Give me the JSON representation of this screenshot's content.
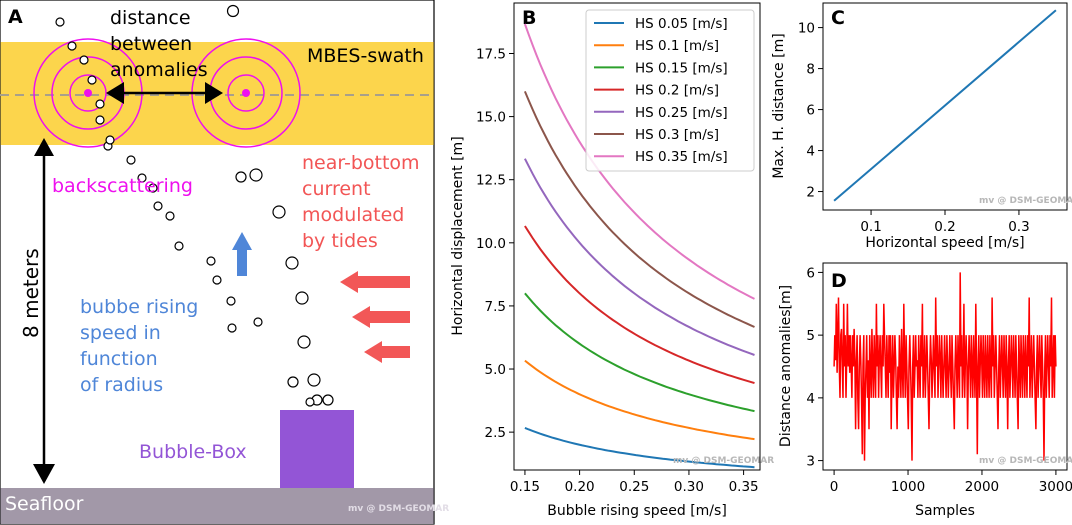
{
  "colors": {
    "swath": "#fcd54c",
    "seafloor": "#a298a8",
    "magenta": "#ee10ee",
    "blue_text": "#4f86d8",
    "red_text": "#f25555",
    "red_arrow": "#f25757",
    "purple_box": "#9355d6",
    "watermark": "#b7b7b7"
  },
  "panel_a": {
    "letter": "A",
    "distance_label": [
      "distance",
      "between",
      "anomalies"
    ],
    "swath_label": "MBES-swath",
    "backscatter_label": "backscattering",
    "current_label": [
      "near-bottom",
      "current",
      "modulated",
      "by tides"
    ],
    "rising_label": [
      "bubbe rising",
      "speed in",
      "function",
      "of radius"
    ],
    "depth_label": "8 meters",
    "box_label": "Bubble-Box",
    "seafloor_label": "Seafloor",
    "watermark": "mv @ DSM-GEOMAR"
  },
  "panel_b": {
    "letter": "B",
    "watermark": "mv @ DSM-GEOMAR"
  },
  "panel_c": {
    "letter": "C",
    "watermark": "mv @ DSM-GEOMAR"
  },
  "panel_d": {
    "letter": "D",
    "watermark": "mv @ DSM-GEOMAR"
  },
  "chart_data": [
    {
      "id": "B",
      "type": "line",
      "title": "",
      "xlabel": "Bubble rising speed [m/s]",
      "ylabel": "Horizontal displacement [m]",
      "xlim": [
        0.14,
        0.365
      ],
      "ylim": [
        1.0,
        19.5
      ],
      "xticks": [
        0.15,
        0.2,
        0.25,
        0.3,
        0.35
      ],
      "xtick_labels": [
        "0.15",
        "0.20",
        "0.25",
        "0.30",
        "0.35"
      ],
      "yticks": [
        2.5,
        5.0,
        7.5,
        10.0,
        12.5,
        15.0,
        17.5
      ],
      "ytick_labels": [
        "2.5",
        "5.0",
        "7.5",
        "10.0",
        "12.5",
        "15.0",
        "17.5"
      ],
      "x_range": [
        0.15,
        0.36
      ],
      "legend_position": "top-right",
      "model": "displacement = 8 * HS / rising_speed",
      "depth_m": 8,
      "series": [
        {
          "name": "HS 0.05 [m/s]",
          "hs": 0.05,
          "color": "#1f77b4",
          "y_start": 2.67,
          "y_end": 1.11
        },
        {
          "name": "HS 0.1 [m/s]",
          "hs": 0.1,
          "color": "#ff7f0e",
          "y_start": 5.33,
          "y_end": 2.22
        },
        {
          "name": "HS 0.15 [m/s]",
          "hs": 0.15,
          "color": "#2ca02c",
          "y_start": 8.0,
          "y_end": 3.33
        },
        {
          "name": "HS 0.2 [m/s]",
          "hs": 0.2,
          "color": "#d62728",
          "y_start": 10.67,
          "y_end": 4.44
        },
        {
          "name": "HS 0.25 [m/s]",
          "hs": 0.25,
          "color": "#9467bd",
          "y_start": 13.33,
          "y_end": 5.56
        },
        {
          "name": "HS 0.3 [m/s]",
          "hs": 0.3,
          "color": "#8c564b",
          "y_start": 16.0,
          "y_end": 6.67
        },
        {
          "name": "HS 0.35 [m/s]",
          "hs": 0.35,
          "color": "#e377c2",
          "y_start": 18.67,
          "y_end": 7.78
        }
      ]
    },
    {
      "id": "C",
      "type": "line",
      "title": "",
      "xlabel": "Horizontal speed [m/s]",
      "ylabel": "Max. H. distance [m]",
      "xlim": [
        0.035,
        0.365
      ],
      "ylim": [
        1.1,
        11.2
      ],
      "xticks": [
        0.1,
        0.2,
        0.3
      ],
      "xtick_labels": [
        "0.1",
        "0.2",
        "0.3"
      ],
      "yticks": [
        2,
        4,
        6,
        8,
        10
      ],
      "ytick_labels": [
        "2",
        "4",
        "6",
        "8",
        "10"
      ],
      "color": "#1f77b4",
      "x": [
        0.05,
        0.35
      ],
      "y": [
        1.55,
        10.85
      ]
    },
    {
      "id": "D",
      "type": "line",
      "title": "",
      "xlabel": "Samples",
      "ylabel": "Distance anomalies[m]",
      "xlim": [
        -150,
        3150
      ],
      "ylim": [
        2.85,
        6.15
      ],
      "xticks": [
        0,
        1000,
        2000,
        3000
      ],
      "xtick_labels": [
        "0",
        "1000",
        "2000",
        "3000"
      ],
      "yticks": [
        3,
        4,
        5,
        6
      ],
      "ytick_labels": [
        "3",
        "4",
        "5",
        "6"
      ],
      "color": "#ff0000",
      "n_samples": 3000,
      "levels": [
        3.0,
        3.1,
        3.5,
        4.0,
        4.4,
        4.5,
        4.6,
        5.0,
        5.1,
        5.5,
        5.6,
        6.0
      ],
      "y": [
        4.5,
        5.0,
        4.6,
        5.5,
        4.4,
        5.0,
        5.6,
        4.5,
        4.0,
        5.0,
        5.1,
        4.5,
        4.0,
        5.5,
        4.5,
        5.0,
        4.0,
        4.6,
        5.5,
        4.5,
        5.0,
        4.4,
        5.0,
        4.5,
        4.0,
        5.0,
        4.5,
        5.1,
        4.6,
        3.5,
        4.5,
        5.0,
        4.0,
        3.5,
        4.5,
        5.0,
        4.6,
        4.0,
        3.1,
        4.5,
        5.0,
        3.0,
        4.0,
        4.5,
        5.0,
        4.0,
        4.6,
        3.5,
        5.0,
        4.5,
        4.0,
        5.1,
        4.5,
        4.0,
        5.0,
        4.5,
        4.0,
        5.5,
        4.5,
        5.0,
        4.0,
        4.6,
        5.0,
        4.5,
        4.0,
        5.0,
        4.5,
        5.5,
        5.0,
        4.5,
        4.0,
        5.0,
        4.5,
        4.0,
        5.0,
        4.4,
        5.0,
        3.5,
        4.5,
        5.0,
        4.0,
        4.5,
        5.0,
        4.6,
        4.0,
        3.5,
        4.5,
        4.0,
        5.0,
        4.5,
        4.0,
        5.1,
        4.5,
        4.0,
        5.5,
        4.6,
        4.0,
        5.0,
        4.5,
        4.0,
        3.5,
        4.5,
        5.0,
        4.5,
        4.0,
        3.0,
        4.5,
        5.0,
        4.0,
        4.5,
        5.0,
        4.5,
        4.6,
        4.0,
        5.0,
        4.5,
        4.0,
        5.0,
        4.5,
        5.5,
        4.0,
        4.5,
        5.0,
        4.0,
        4.5,
        5.0,
        4.5,
        4.0,
        3.5,
        4.5,
        5.0,
        4.6,
        4.0,
        4.5,
        5.0,
        4.5,
        4.0,
        5.6,
        4.5,
        5.0,
        4.0,
        4.5,
        5.0,
        4.6,
        4.0,
        5.0,
        4.5,
        4.0,
        4.5,
        5.0,
        4.5,
        4.0,
        5.0,
        4.5,
        4.0,
        4.5,
        5.0,
        4.4,
        4.0,
        5.0,
        4.5,
        4.0,
        3.5,
        4.5,
        5.0,
        4.5,
        4.0,
        5.0,
        4.5,
        4.0,
        6.0,
        4.5,
        5.0,
        4.0,
        4.5,
        5.5,
        4.0,
        4.6,
        5.0,
        4.5,
        3.5,
        4.5,
        5.0,
        4.5,
        4.0,
        5.0,
        4.5,
        4.0,
        5.0,
        4.5,
        4.0,
        5.5,
        4.5,
        3.1,
        4.5,
        5.0,
        4.0,
        4.5,
        5.0,
        4.6,
        4.0,
        5.0,
        4.5,
        4.0,
        5.0,
        4.5,
        4.0,
        5.0,
        4.5,
        4.0,
        5.0,
        4.5,
        4.0,
        5.6,
        4.5,
        5.0,
        4.0,
        4.5,
        5.0,
        4.5,
        4.0,
        3.5,
        4.5,
        5.0,
        4.0,
        4.5,
        5.0,
        4.5,
        4.0,
        5.0,
        4.5,
        4.0,
        5.0,
        4.5,
        3.5,
        4.5,
        5.0,
        4.0,
        4.5,
        5.0,
        4.6,
        4.0,
        5.0,
        4.5,
        4.0,
        5.0,
        4.5,
        4.0,
        3.5,
        5.0,
        4.5,
        4.0,
        5.0,
        4.5,
        4.0,
        5.0,
        4.6,
        4.0,
        5.0,
        4.5,
        4.0,
        5.0,
        4.5,
        5.6,
        4.0,
        4.5,
        5.0,
        4.0,
        4.5,
        5.0,
        4.5,
        4.0,
        3.5,
        4.5,
        5.0,
        4.0,
        4.5,
        5.0,
        4.5,
        4.0,
        5.0,
        4.5,
        4.0,
        3.0,
        4.5,
        5.0,
        4.0,
        4.5,
        5.0,
        4.5,
        4.0,
        5.0,
        4.5,
        5.6,
        4.0,
        4.5,
        5.0,
        4.0,
        5.0,
        4.5
      ]
    }
  ]
}
